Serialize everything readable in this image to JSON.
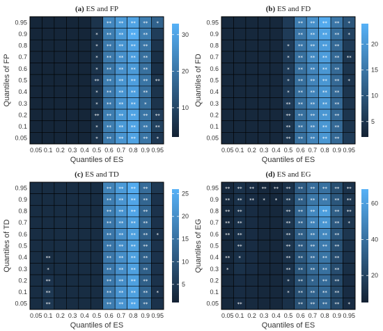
{
  "figure": {
    "ticks": [
      "0.05",
      "0.1",
      "0.2",
      "0.3",
      "0.4",
      "0.5",
      "0.6",
      "0.7",
      "0.8",
      "0.9",
      "0.95"
    ],
    "colors": {
      "low": "#132133",
      "high": "#56b1f7",
      "grid": "#000000"
    }
  },
  "chart_data": [
    {
      "type": "heatmap",
      "panel_letter": "(a)",
      "title_text": "ES and FP",
      "xlabel": "Quantiles of ES",
      "ylabel": "Quantiles of FP",
      "x": [
        "0.05",
        "0.1",
        "0.2",
        "0.3",
        "0.4",
        "0.5",
        "0.6",
        "0.7",
        "0.8",
        "0.9",
        "0.95"
      ],
      "y": [
        "0.05",
        "0.1",
        "0.2",
        "0.3",
        "0.4",
        "0.5",
        "0.6",
        "0.7",
        "0.8",
        "0.9",
        "0.95"
      ],
      "colorbar": {
        "min": 2,
        "max": 33,
        "ticks": [
          10,
          20,
          30
        ]
      },
      "values": [
        [
          3,
          3,
          3,
          3,
          3,
          6,
          24,
          28,
          30,
          22,
          16
        ],
        [
          3,
          3,
          3,
          3,
          3,
          6,
          22,
          28,
          32,
          22,
          8
        ],
        [
          3,
          3,
          3,
          3,
          3,
          6,
          21,
          27,
          30,
          20,
          6
        ],
        [
          3,
          3,
          3,
          3,
          3,
          6,
          21,
          26,
          29,
          19,
          5
        ],
        [
          3,
          3,
          3,
          3,
          3,
          6,
          20,
          26,
          28,
          19,
          5
        ],
        [
          3,
          3,
          3,
          3,
          3,
          7,
          22,
          27,
          29,
          20,
          6
        ],
        [
          3,
          3,
          3,
          3,
          3,
          6,
          21,
          27,
          29,
          19,
          6
        ],
        [
          3,
          3,
          3,
          3,
          3,
          6,
          21,
          27,
          29,
          19,
          6
        ],
        [
          3,
          3,
          3,
          3,
          3,
          6,
          22,
          28,
          30,
          20,
          8
        ],
        [
          3,
          3,
          3,
          3,
          3,
          6,
          22,
          28,
          30,
          21,
          9
        ],
        [
          3,
          3,
          3,
          3,
          3,
          6,
          21,
          27,
          30,
          20,
          7
        ]
      ],
      "stars": [
        [
          "",
          "",
          "",
          "",
          "",
          "",
          "**",
          "**",
          "**",
          "**",
          "*"
        ],
        [
          "",
          "",
          "",
          "",
          "",
          "*",
          "**",
          "**",
          "**",
          "**",
          ""
        ],
        [
          "",
          "",
          "",
          "",
          "",
          "*",
          "**",
          "**",
          "**",
          "**",
          ""
        ],
        [
          "",
          "",
          "",
          "",
          "",
          "*",
          "**",
          "**",
          "**",
          "**",
          ""
        ],
        [
          "",
          "",
          "",
          "",
          "",
          "*",
          "**",
          "**",
          "**",
          "**",
          ""
        ],
        [
          "",
          "",
          "",
          "",
          "",
          "**",
          "**",
          "**",
          "**",
          "**",
          "**"
        ],
        [
          "",
          "",
          "",
          "",
          "",
          "*",
          "**",
          "**",
          "**",
          "**",
          ""
        ],
        [
          "",
          "",
          "",
          "",
          "",
          "*",
          "**",
          "**",
          "**",
          "*",
          ""
        ],
        [
          "",
          "",
          "",
          "",
          "",
          "**",
          "**",
          "**",
          "**",
          "**",
          "**"
        ],
        [
          "",
          "",
          "",
          "",
          "",
          "*",
          "**",
          "**",
          "**",
          "**",
          "**"
        ],
        [
          "",
          "",
          "",
          "",
          "",
          "*",
          "**",
          "**",
          "**",
          "**",
          "*"
        ]
      ]
    },
    {
      "type": "heatmap",
      "panel_letter": "(b)",
      "title_text": "ES and FD",
      "xlabel": "Quantiles of ES",
      "ylabel": "Quantiles of FD",
      "x": [
        "0.05",
        "0.1",
        "0.2",
        "0.3",
        "0.4",
        "0.5",
        "0.6",
        "0.7",
        "0.8",
        "0.9",
        "0.95"
      ],
      "y": [
        "0.05",
        "0.1",
        "0.2",
        "0.3",
        "0.4",
        "0.5",
        "0.6",
        "0.7",
        "0.8",
        "0.9",
        "0.95"
      ],
      "colorbar": {
        "min": 2,
        "max": 24,
        "ticks": [
          5,
          10,
          15,
          20
        ]
      },
      "values": [
        [
          3,
          3,
          3,
          3,
          3,
          6,
          16,
          19,
          23,
          15,
          10
        ],
        [
          3,
          3,
          3,
          3,
          3,
          6,
          15,
          19,
          22,
          14,
          7
        ],
        [
          3,
          3,
          3,
          3,
          3,
          6,
          15,
          18,
          21,
          13,
          6
        ],
        [
          3,
          3,
          3,
          3,
          3,
          6,
          14,
          18,
          21,
          13,
          5
        ],
        [
          3,
          3,
          3,
          3,
          3,
          6,
          14,
          17,
          20,
          13,
          5
        ],
        [
          3,
          3,
          3,
          3,
          3,
          6,
          14,
          17,
          20,
          13,
          5
        ],
        [
          3,
          3,
          3,
          3,
          3,
          6,
          14,
          17,
          20,
          13,
          5
        ],
        [
          3,
          3,
          3,
          3,
          3,
          6,
          14,
          17,
          20,
          13,
          5
        ],
        [
          3,
          3,
          3,
          3,
          3,
          5,
          14,
          17,
          20,
          13,
          5
        ],
        [
          3,
          3,
          3,
          3,
          3,
          5,
          14,
          17,
          20,
          13,
          5
        ],
        [
          3,
          3,
          3,
          3,
          3,
          5,
          14,
          17,
          20,
          13,
          6
        ]
      ],
      "stars": [
        [
          "",
          "",
          "",
          "",
          "",
          "",
          "**",
          "**",
          "**",
          "**",
          "*"
        ],
        [
          "",
          "",
          "",
          "",
          "",
          "",
          "**",
          "**",
          "**",
          "**",
          "*"
        ],
        [
          "",
          "",
          "",
          "",
          "",
          "*",
          "**",
          "**",
          "**",
          "**",
          ""
        ],
        [
          "",
          "",
          "",
          "",
          "",
          "*",
          "**",
          "**",
          "**",
          "**",
          "**"
        ],
        [
          "",
          "",
          "",
          "",
          "",
          "*",
          "**",
          "**",
          "**",
          "**",
          ""
        ],
        [
          "",
          "",
          "",
          "",
          "",
          "*",
          "**",
          "**",
          "**",
          "**",
          "*"
        ],
        [
          "",
          "",
          "",
          "",
          "",
          "*",
          "**",
          "**",
          "**",
          "**",
          ""
        ],
        [
          "",
          "",
          "",
          "",
          "",
          "**",
          "**",
          "**",
          "**",
          "**",
          ""
        ],
        [
          "",
          "",
          "",
          "",
          "",
          "**",
          "**",
          "**",
          "**",
          "**",
          ""
        ],
        [
          "",
          "",
          "",
          "",
          "",
          "**",
          "**",
          "**",
          "**",
          "**",
          ""
        ],
        [
          "",
          "",
          "",
          "",
          "",
          "**",
          "**",
          "**",
          "**",
          "**",
          ""
        ]
      ]
    },
    {
      "type": "heatmap",
      "panel_letter": "(c)",
      "title_text": "ES and TD",
      "xlabel": "Quantiles of ES",
      "ylabel": "Quantiles of TD",
      "x": [
        "0.05",
        "0.1",
        "0.2",
        "0.3",
        "0.4",
        "0.5",
        "0.6",
        "0.7",
        "0.8",
        "0.9",
        "0.95"
      ],
      "y": [
        "0.05",
        "0.1",
        "0.2",
        "0.3",
        "0.4",
        "0.5",
        "0.6",
        "0.7",
        "0.8",
        "0.9",
        "0.95"
      ],
      "colorbar": {
        "min": 1,
        "max": 26,
        "ticks": [
          5,
          10,
          15,
          20,
          25
        ]
      },
      "values": [
        [
          3,
          3,
          3,
          3,
          3,
          3,
          18,
          22,
          25,
          14,
          5
        ],
        [
          3,
          3,
          3,
          3,
          3,
          3,
          17,
          21,
          24,
          13,
          4
        ],
        [
          3,
          3,
          3,
          3,
          3,
          3,
          17,
          21,
          24,
          13,
          4
        ],
        [
          3,
          3,
          3,
          3,
          3,
          3,
          16,
          20,
          23,
          13,
          4
        ],
        [
          3,
          3,
          3,
          3,
          3,
          3,
          16,
          20,
          23,
          12,
          4
        ],
        [
          3,
          3,
          3,
          3,
          3,
          3,
          16,
          20,
          23,
          12,
          4
        ],
        [
          3,
          3,
          3,
          3,
          3,
          3,
          16,
          20,
          23,
          12,
          4
        ],
        [
          3,
          3,
          3,
          3,
          3,
          3,
          16,
          20,
          23,
          12,
          4
        ],
        [
          3,
          4,
          3,
          3,
          3,
          3,
          16,
          20,
          23,
          12,
          4
        ],
        [
          3,
          5,
          3,
          3,
          3,
          3,
          16,
          21,
          23,
          13,
          4
        ],
        [
          3,
          5,
          3,
          3,
          3,
          3,
          17,
          21,
          24,
          13,
          4
        ]
      ],
      "stars": [
        [
          "",
          "",
          "",
          "",
          "",
          "",
          "**",
          "**",
          "**",
          "**",
          ""
        ],
        [
          "",
          "",
          "",
          "",
          "",
          "",
          "**",
          "**",
          "**",
          "**",
          ""
        ],
        [
          "",
          "",
          "",
          "",
          "",
          "",
          "**",
          "**",
          "**",
          "**",
          ""
        ],
        [
          "",
          "",
          "",
          "",
          "",
          "",
          "**",
          "**",
          "**",
          "**",
          ""
        ],
        [
          "",
          "",
          "",
          "",
          "",
          "",
          "**",
          "**",
          "**",
          "**",
          "*"
        ],
        [
          "",
          "",
          "",
          "",
          "",
          "",
          "**",
          "**",
          "**",
          "**",
          ""
        ],
        [
          "",
          "**",
          "",
          "",
          "",
          "",
          "**",
          "**",
          "**",
          "**",
          ""
        ],
        [
          "",
          "*",
          "",
          "",
          "",
          "",
          "**",
          "**",
          "**",
          "**",
          ""
        ],
        [
          "",
          "**",
          "",
          "",
          "",
          "",
          "**",
          "**",
          "**",
          "**",
          ""
        ],
        [
          "",
          "**",
          "",
          "",
          "",
          "",
          "**",
          "**",
          "**",
          "**",
          "*"
        ],
        [
          "",
          "**",
          "",
          "",
          "",
          "",
          "**",
          "**",
          "**",
          "**",
          ""
        ]
      ]
    },
    {
      "type": "heatmap",
      "panel_letter": "(d)",
      "title_text": "ES and EG",
      "xlabel": "Quantiles of ES",
      "ylabel": "Quantiles of EG",
      "x": [
        "0.05",
        "0.1",
        "0.2",
        "0.3",
        "0.4",
        "0.5",
        "0.6",
        "0.7",
        "0.8",
        "0.9",
        "0.95"
      ],
      "y": [
        "0.05",
        "0.1",
        "0.2",
        "0.3",
        "0.4",
        "0.5",
        "0.6",
        "0.7",
        "0.8",
        "0.9",
        "0.95"
      ],
      "colorbar": {
        "min": 5,
        "max": 68,
        "ticks": [
          20,
          40,
          60
        ]
      },
      "values": [
        [
          8,
          12,
          10,
          8,
          8,
          12,
          30,
          38,
          40,
          25,
          12
        ],
        [
          8,
          12,
          10,
          8,
          8,
          14,
          32,
          42,
          45,
          28,
          14
        ],
        [
          8,
          12,
          10,
          8,
          8,
          14,
          36,
          50,
          60,
          32,
          15
        ],
        [
          8,
          12,
          10,
          8,
          8,
          14,
          34,
          48,
          56,
          30,
          14
        ],
        [
          8,
          12,
          10,
          8,
          8,
          14,
          32,
          44,
          50,
          28,
          14
        ],
        [
          8,
          12,
          10,
          8,
          8,
          14,
          30,
          40,
          45,
          26,
          12
        ],
        [
          8,
          12,
          10,
          8,
          8,
          12,
          28,
          38,
          42,
          24,
          12
        ],
        [
          8,
          12,
          10,
          8,
          8,
          12,
          28,
          36,
          40,
          24,
          11
        ],
        [
          8,
          10,
          9,
          8,
          8,
          12,
          26,
          34,
          38,
          22,
          10
        ],
        [
          8,
          10,
          9,
          8,
          8,
          12,
          26,
          34,
          37,
          22,
          10
        ],
        [
          8,
          10,
          9,
          8,
          8,
          12,
          26,
          34,
          37,
          22,
          10
        ]
      ],
      "stars": [
        [
          "**",
          "**",
          "**",
          "**",
          "**",
          "**",
          "**",
          "**",
          "**",
          "**",
          "**"
        ],
        [
          "**",
          "**",
          "**",
          "*",
          "*",
          "**",
          "**",
          "**",
          "**",
          "**",
          "**"
        ],
        [
          "**",
          "**",
          "",
          "",
          "",
          "**",
          "**",
          "**",
          "**",
          "**",
          "**"
        ],
        [
          "**",
          "**",
          "",
          "",
          "",
          "**",
          "**",
          "**",
          "**",
          "**",
          "*"
        ],
        [
          "**",
          "**",
          "",
          "",
          "",
          "**",
          "**",
          "**",
          "**",
          "**",
          ""
        ],
        [
          "",
          "**",
          "",
          "",
          "",
          "**",
          "**",
          "**",
          "**",
          "**",
          ""
        ],
        [
          "**",
          "*",
          "",
          "",
          "",
          "**",
          "**",
          "**",
          "**",
          "**",
          ""
        ],
        [
          "*",
          "",
          "",
          "",
          "",
          "**",
          "**",
          "**",
          "**",
          "**",
          ""
        ],
        [
          "",
          "",
          "",
          "",
          "",
          "*",
          "**",
          "*",
          "**",
          "**",
          ""
        ],
        [
          "",
          "",
          "",
          "",
          "",
          "*",
          "**",
          "**",
          "**",
          "**",
          ""
        ],
        [
          "",
          "**",
          "",
          "",
          "",
          "",
          "**",
          "**",
          "**",
          "**",
          "*"
        ]
      ]
    }
  ]
}
